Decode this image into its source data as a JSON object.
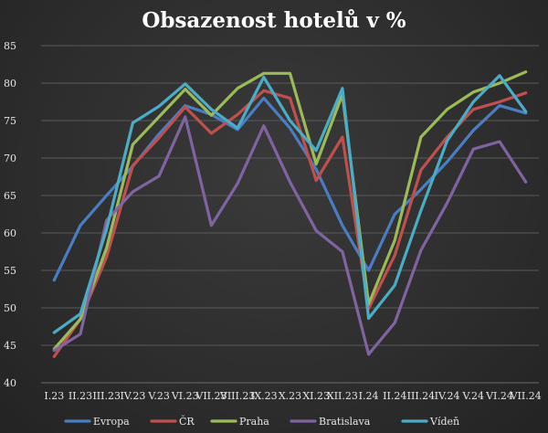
{
  "chart_data": {
    "type": "line",
    "title": "Obsazenost hotelů v %",
    "categories": [
      "I.23",
      "II.23",
      "III.23",
      "IV.23",
      "V.23",
      "VI.23",
      "VII.23",
      "VIII.23",
      "IX.23",
      "X.23",
      "XI.23",
      "XII.23",
      "I.24",
      "II.24",
      "III.24",
      "IV.24",
      "V.24",
      "VI.24",
      "VII.24"
    ],
    "ylim": [
      40,
      85
    ],
    "yticks": [
      40,
      45,
      50,
      55,
      60,
      65,
      70,
      75,
      80,
      85
    ],
    "grid": true,
    "legend_position": "bottom",
    "series": [
      {
        "name": "Evropa",
        "color": "#4a7ec2",
        "values": [
          53.7,
          61.0,
          65.0,
          68.9,
          73.2,
          77.0,
          75.8,
          73.8,
          78.0,
          74.0,
          68.5,
          61.0,
          55.0,
          62.5,
          65.8,
          69.5,
          73.7,
          77.0,
          76.0
        ]
      },
      {
        "name": "ČR",
        "color": "#c0504d",
        "values": [
          43.5,
          48.5,
          56.8,
          69.0,
          72.7,
          76.8,
          73.3,
          75.8,
          79.0,
          78.0,
          67.0,
          72.8,
          49.9,
          57.0,
          68.4,
          72.8,
          76.5,
          77.5,
          78.7
        ]
      },
      {
        "name": "Praha",
        "color": "#9bbb59",
        "values": [
          44.5,
          48.5,
          58.0,
          71.8,
          75.5,
          79.2,
          75.7,
          79.3,
          81.3,
          81.3,
          69.2,
          78.5,
          50.5,
          59.0,
          72.8,
          76.5,
          78.8,
          80.0,
          81.5
        ]
      },
      {
        "name": "Bratislava",
        "color": "#8064a2",
        "values": [
          44.3,
          46.5,
          61.7,
          65.5,
          67.6,
          75.5,
          61.0,
          66.6,
          74.3,
          66.8,
          60.3,
          57.5,
          43.8,
          48.0,
          57.7,
          64.0,
          71.2,
          72.2,
          66.8
        ]
      },
      {
        "name": "Vídeň",
        "color": "#4bacc6",
        "values": [
          46.7,
          49.2,
          60.5,
          74.7,
          76.9,
          79.9,
          76.5,
          74.0,
          80.8,
          75.0,
          71.0,
          79.3,
          48.6,
          53.0,
          63.0,
          72.3,
          77.5,
          81.0,
          76.2
        ]
      }
    ]
  }
}
